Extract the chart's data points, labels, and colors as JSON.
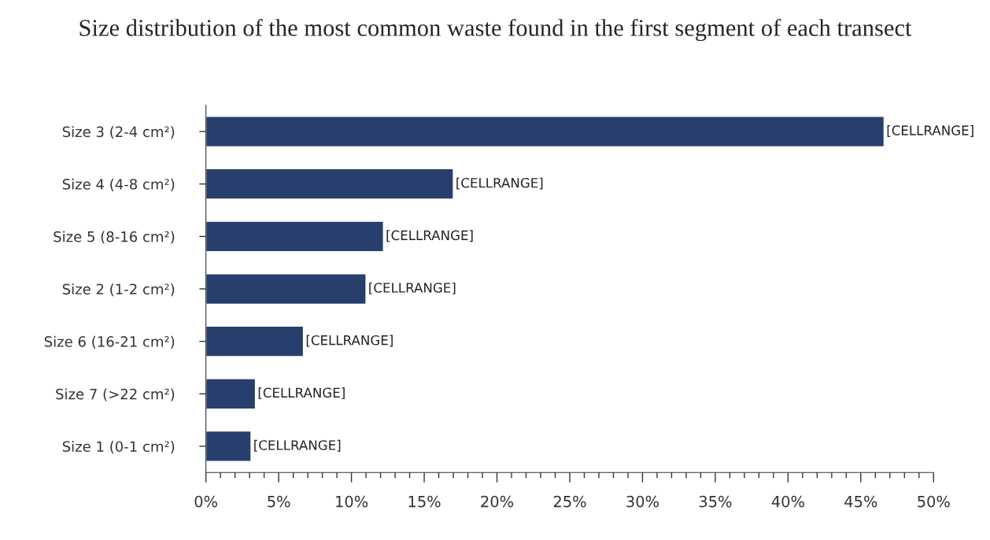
{
  "chart_data": {
    "type": "bar",
    "orientation": "horizontal",
    "title": "Size distribution of the most common waste found in the first segment of each transect",
    "categories": [
      "Size 3 (2-4 cm²)",
      "Size 4 (4-8 cm²)",
      "Size 5 (8-16 cm²)",
      "Size 2 (1-2 cm²)",
      "Size 6 (16-21 cm²)",
      "Size 7 (>22 cm²)",
      "Size 1 (0-1 cm²)"
    ],
    "values": [
      46.6,
      17.0,
      12.2,
      11.0,
      6.7,
      3.4,
      3.1
    ],
    "value_labels": [
      "[CELLRANGE]",
      "[CELLRANGE]",
      "[CELLRANGE]",
      "[CELLRANGE]",
      "[CELLRANGE]",
      "[CELLRANGE]",
      "[CELLRANGE]"
    ],
    "color": "#283f6d",
    "xlim": [
      0,
      50
    ],
    "xticks": [
      {
        "value": 0,
        "label": "0%"
      },
      {
        "value": 5,
        "label": "5%"
      },
      {
        "value": 10,
        "label": "10%"
      },
      {
        "value": 15,
        "label": "15%"
      },
      {
        "value": 20,
        "label": "20%"
      },
      {
        "value": 25,
        "label": "25%"
      },
      {
        "value": 30,
        "label": "30%"
      },
      {
        "value": 35,
        "label": "35%"
      },
      {
        "value": 40,
        "label": "40%"
      },
      {
        "value": 45,
        "label": "45%"
      },
      {
        "value": 50,
        "label": "50%"
      }
    ],
    "grid": false,
    "legend": false
  }
}
